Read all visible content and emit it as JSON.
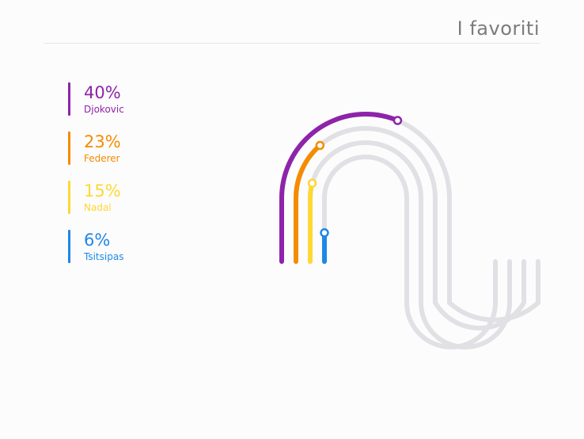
{
  "header": {
    "title": "I favoriti"
  },
  "colors": {
    "track": "#e1e1e5",
    "background": "#fcfcfc"
  },
  "chart_data": {
    "type": "radial-track",
    "title": "I favoriti",
    "series": [
      {
        "name": "Djokovic",
        "label": "40%",
        "value": 40,
        "color": "#8e24aa"
      },
      {
        "name": "Federer",
        "label": "23%",
        "value": 23,
        "color": "#f58b00"
      },
      {
        "name": "Nadal",
        "label": "15%",
        "value": 15,
        "color": "#fdd835"
      },
      {
        "name": "Tsitsipas",
        "label": "6%",
        "value": 6,
        "color": "#1e88e5"
      }
    ]
  }
}
